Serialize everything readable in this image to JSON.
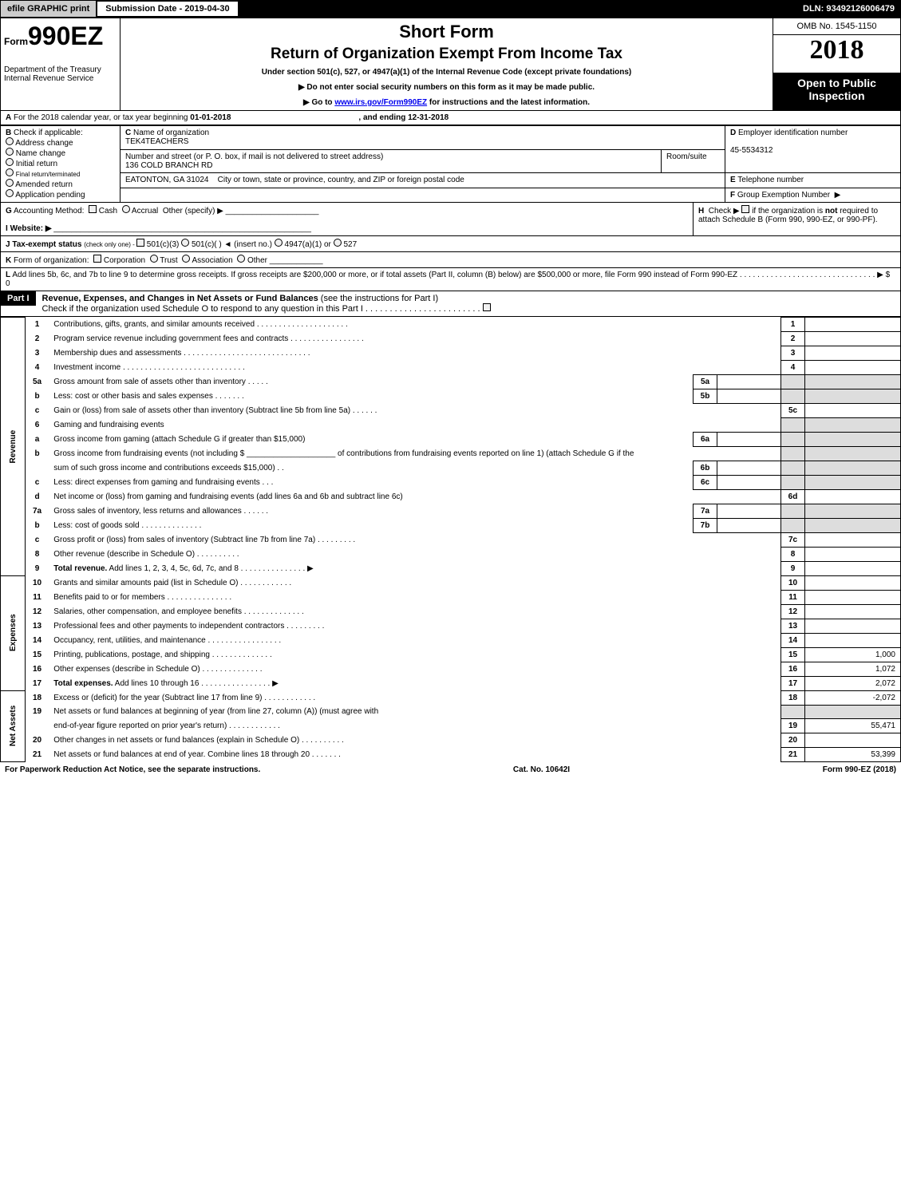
{
  "top": {
    "efile": "efile GRAPHIC print",
    "submission": "Submission Date - 2019-04-30",
    "dln": "DLN: 93492126006479"
  },
  "header": {
    "form_prefix": "Form",
    "form_num": "990EZ",
    "dept": "Department of the Treasury",
    "irs": "Internal Revenue Service",
    "short_form": "Short Form",
    "title": "Return of Organization Exempt From Income Tax",
    "subtitle": "Under section 501(c), 527, or 4947(a)(1) of the Internal Revenue Code (except private foundations)",
    "note1": "▶ Do not enter social security numbers on this form as it may be made public.",
    "note2_pre": "▶ Go to ",
    "note2_link": "www.irs.gov/Form990EZ",
    "note2_post": " for instructions and the latest information.",
    "omb": "OMB No. 1545-1150",
    "year": "2018",
    "open": "Open to Public Inspection"
  },
  "rowA": {
    "label": "A",
    "text_pre": "For the 2018 calendar year, or tax year beginning ",
    "begin": "01-01-2018",
    "mid": ", and ending ",
    "end": "12-31-2018"
  },
  "rowB": {
    "label": "B",
    "text": "Check if applicable:",
    "opts": [
      "Address change",
      "Name change",
      "Initial return",
      "Final return/terminated",
      "Amended return",
      "Application pending"
    ]
  },
  "blockC": {
    "label": "C",
    "name_lbl": "Name of organization",
    "name": "TEK4TEACHERS",
    "street_lbl": "Number and street (or P. O. box, if mail is not delivered to street address)",
    "street": "136 COLD BRANCH RD",
    "room_lbl": "Room/suite",
    "city_lbl": "City or town, state or province, country, and ZIP or foreign postal code",
    "city": "EATONTON, GA  31024"
  },
  "blockD": {
    "label": "D",
    "text": "Employer identification number",
    "val": "45-5534312"
  },
  "blockE": {
    "label": "E",
    "text": "Telephone number"
  },
  "blockF": {
    "label": "F",
    "text": "Group Exemption Number",
    "arrow": "▶"
  },
  "rowG": {
    "label": "G",
    "text": "Accounting Method:",
    "cash": "Cash",
    "accrual": "Accrual",
    "other": "Other (specify) ▶"
  },
  "rowH": {
    "label": "H",
    "text_pre": "Check ▶",
    "text_post": "if the organization is ",
    "not": "not",
    "text_end": " required to attach Schedule B (Form 990, 990-EZ, or 990-PF)."
  },
  "rowI": {
    "label": "I",
    "text": "Website: ▶"
  },
  "rowJ": {
    "label": "J",
    "text": "Tax-exempt status",
    "detail": "(check only one) - ",
    "o1": "501(c)(3)",
    "o2": "501(c)(  ) ◄ (insert no.)",
    "o3": "4947(a)(1) or",
    "o4": "527"
  },
  "rowK": {
    "label": "K",
    "text": "Form of organization:",
    "o1": "Corporation",
    "o2": "Trust",
    "o3": "Association",
    "o4": "Other"
  },
  "rowL": {
    "label": "L",
    "text": "Add lines 5b, 6c, and 7b to line 9 to determine gross receipts. If gross receipts are $200,000 or more, or if total assets (Part II, column (B) below) are $500,000 or more, file Form 990 instead of Form 990-EZ  .  .  .  .  .  .  .  .  .  .  .  .  .  .  .  .  .  .  .  .  .  .  .  .  .  .  .  .  .  .  .  ▶ $ 0"
  },
  "part1": {
    "label": "Part I",
    "title": "Revenue, Expenses, and Changes in Net Assets or Fund Balances",
    "note": "(see the instructions for Part I)",
    "check": "Check if the organization used Schedule O to respond to any question in this Part I .  .  .  .  .  .  .  .  .  .  .  .  .  .  .  .  .  .  .  .  .  .  .  ."
  },
  "sections": {
    "revenue": "Revenue",
    "expenses": "Expenses",
    "netassets": "Net Assets"
  },
  "lines": [
    {
      "n": "1",
      "t": "Contributions, gifts, grants, and similar amounts received  .  .  .  .  .  .  .  .  .  .  .  .  .  .  .  .  .  .  .  .  .",
      "ref": "1",
      "amt": ""
    },
    {
      "n": "2",
      "t": "Program service revenue including government fees and contracts  .  .  .  .  .  .  .  .  .  .  .  .  .  .  .  .  .",
      "ref": "2",
      "amt": ""
    },
    {
      "n": "3",
      "t": "Membership dues and assessments  .  .  .  .  .  .  .  .  .  .  .  .  .  .  .  .  .  .  .  .  .  .  .  .  .  .  .  .  .",
      "ref": "3",
      "amt": ""
    },
    {
      "n": "4",
      "t": "Investment income  .  .  .  .  .  .  .  .  .  .  .  .  .  .  .  .  .  .  .  .  .  .  .  .  .  .  .  .",
      "ref": "4",
      "amt": ""
    },
    {
      "n": "5a",
      "t": "Gross amount from sale of assets other than inventory  .  .  .  .  .",
      "sub": "5a",
      "subamt": ""
    },
    {
      "n": "b",
      "t": "Less: cost or other basis and sales expenses  .  .  .  .  .  .  .",
      "sub": "5b",
      "subamt": ""
    },
    {
      "n": "c",
      "t": "Gain or (loss) from sale of assets other than inventory (Subtract line 5b from line 5a)          .  .  .  .  .  .",
      "ref": "5c",
      "amt": ""
    },
    {
      "n": "6",
      "t": "Gaming and fundraising events"
    },
    {
      "n": "a",
      "t": "Gross income from gaming (attach Schedule G if greater than $15,000)",
      "sub": "6a",
      "subamt": ""
    },
    {
      "n": "b",
      "t": "Gross income from fundraising events (not including $ ____________________ of contributions from fundraising events reported on line 1) (attach Schedule G if the"
    },
    {
      "n": "",
      "t": "sum of such gross income and contributions exceeds $15,000)         .  .",
      "sub": "6b",
      "subamt": ""
    },
    {
      "n": "c",
      "t": "Less: direct expenses from gaming and fundraising events         .  .  .",
      "sub": "6c",
      "subamt": ""
    },
    {
      "n": "d",
      "t": "Net income or (loss) from gaming and fundraising events (add lines 6a and 6b and subtract line 6c)",
      "ref": "6d",
      "amt": ""
    },
    {
      "n": "7a",
      "t": "Gross sales of inventory, less returns and allowances          .  .  .  .  .  .",
      "sub": "7a",
      "subamt": ""
    },
    {
      "n": "b",
      "t": "Less: cost of goods sold                      .  .  .  .  .  .  .  .  .  .  .  .  .  .",
      "sub": "7b",
      "subamt": ""
    },
    {
      "n": "c",
      "t": "Gross profit or (loss) from sales of inventory (Subtract line 7b from line 7a)          .  .  .  .  .  .  .  .  .",
      "ref": "7c",
      "amt": ""
    },
    {
      "n": "8",
      "t": "Other revenue (describe in Schedule O)          .  .  .  .  .  .  .  .  .  .",
      "ref": "8",
      "amt": ""
    },
    {
      "n": "9",
      "t": "Total revenue. Add lines 1, 2, 3, 4, 5c, 6d, 7c, and 8          .  .  .  .  .  .  .  .  .  .  .  .  .  .  .  ▶",
      "ref": "9",
      "amt": "",
      "bold": true
    },
    {
      "n": "10",
      "t": "Grants and similar amounts paid (list in Schedule O)          .  .  .  .  .  .  .  .  .  .  .  .",
      "ref": "10",
      "amt": ""
    },
    {
      "n": "11",
      "t": "Benefits paid to or for members          .  .  .  .  .  .  .  .  .  .  .  .  .  .  .",
      "ref": "11",
      "amt": ""
    },
    {
      "n": "12",
      "t": "Salaries, other compensation, and employee benefits          .  .  .  .  .  .  .  .  .  .  .  .  .  .",
      "ref": "12",
      "amt": ""
    },
    {
      "n": "13",
      "t": "Professional fees and other payments to independent contractors          .  .  .  .  .  .  .  .  .",
      "ref": "13",
      "amt": ""
    },
    {
      "n": "14",
      "t": "Occupancy, rent, utilities, and maintenance          .  .  .  .  .  .  .  .  .  .  .  .  .  .  .  .  .",
      "ref": "14",
      "amt": ""
    },
    {
      "n": "15",
      "t": "Printing, publications, postage, and shipping          .  .  .  .  .  .  .  .  .  .  .  .  .  .",
      "ref": "15",
      "amt": "1,000"
    },
    {
      "n": "16",
      "t": "Other expenses (describe in Schedule O)          .  .  .  .  .  .  .  .  .  .  .  .  .  .",
      "ref": "16",
      "amt": "1,072"
    },
    {
      "n": "17",
      "t": "Total expenses. Add lines 10 through 16          .  .  .  .  .  .  .  .  .  .  .  .  .  .  .  .  ▶",
      "ref": "17",
      "amt": "2,072",
      "bold": true
    },
    {
      "n": "18",
      "t": "Excess or (deficit) for the year (Subtract line 17 from line 9)          .  .  .  .  .  .  .  .  .  .  .  .",
      "ref": "18",
      "amt": "-2,072"
    },
    {
      "n": "19",
      "t": "Net assets or fund balances at beginning of year (from line 27, column (A)) (must agree with"
    },
    {
      "n": "",
      "t": "end-of-year figure reported on prior year's return)          .  .  .  .  .  .  .  .  .  .  .  .",
      "ref": "19",
      "amt": "55,471"
    },
    {
      "n": "20",
      "t": "Other changes in net assets or fund balances (explain in Schedule O)          .  .  .  .  .  .  .  .  .  .",
      "ref": "20",
      "amt": ""
    },
    {
      "n": "21",
      "t": "Net assets or fund balances at end of year. Combine lines 18 through 20          .  .  .  .  .  .  .",
      "ref": "21",
      "amt": "53,399"
    }
  ],
  "footer": {
    "left": "For Paperwork Reduction Act Notice, see the separate instructions.",
    "mid": "Cat. No. 10642I",
    "right": "Form 990-EZ (2018)"
  }
}
